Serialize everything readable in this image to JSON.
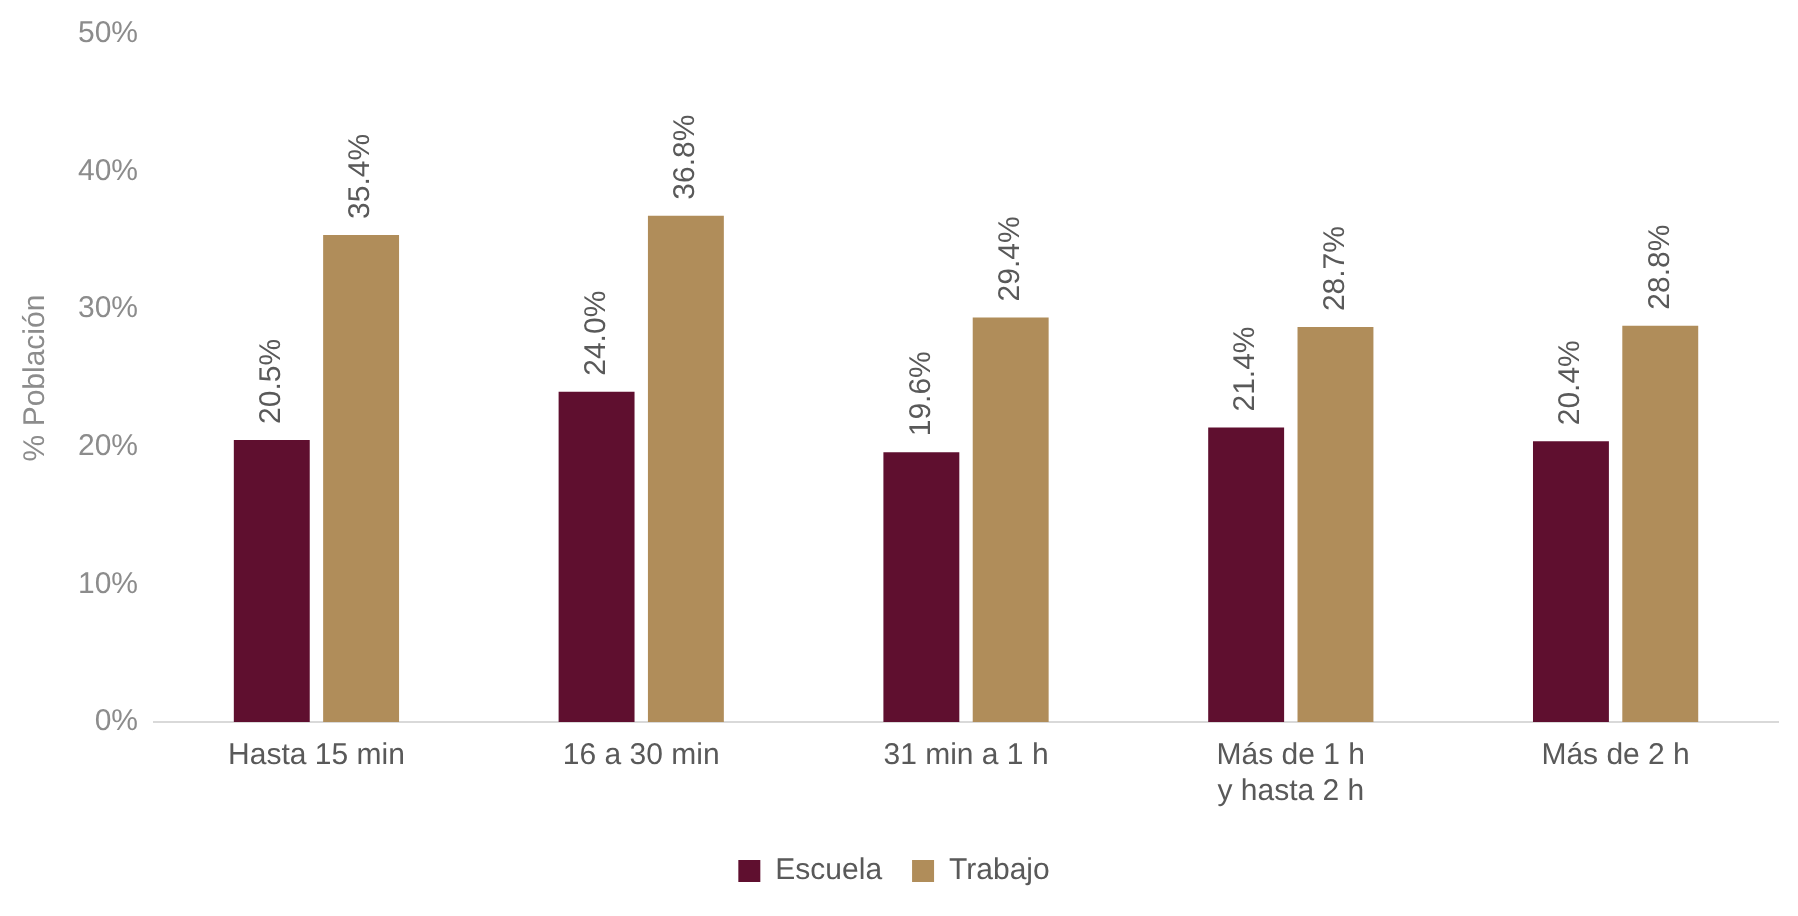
{
  "chart_data": {
    "type": "bar",
    "ylabel": "% Población",
    "categories": [
      "Hasta 15 min",
      "16 a 30 min",
      "31 min a 1 h",
      "Más de 1 h y hasta 2 h",
      "Más de 2 h"
    ],
    "series": [
      {
        "name": "Escuela",
        "color": "#5f0f2f",
        "values": [
          20.5,
          24.0,
          19.6,
          21.4,
          20.4
        ],
        "value_labels": [
          "20.5%",
          "24.0%",
          "19.6%",
          "21.4%",
          "20.4%"
        ]
      },
      {
        "name": "Trabajo",
        "color": "#b08d5a",
        "values": [
          35.4,
          36.8,
          29.4,
          28.7,
          28.8
        ],
        "value_labels": [
          "35.4%",
          "36.8%",
          "29.4%",
          "28.7%",
          "28.8%"
        ]
      }
    ],
    "ylim": [
      0,
      50
    ],
    "yticks": [
      {
        "value": 0,
        "label": "0%"
      },
      {
        "value": 10,
        "label": "10%"
      },
      {
        "value": 20,
        "label": "20%"
      },
      {
        "value": 30,
        "label": "30%"
      },
      {
        "value": 40,
        "label": "40%"
      },
      {
        "value": 50,
        "label": "50%"
      }
    ],
    "grid": false,
    "legend": "bottom"
  }
}
